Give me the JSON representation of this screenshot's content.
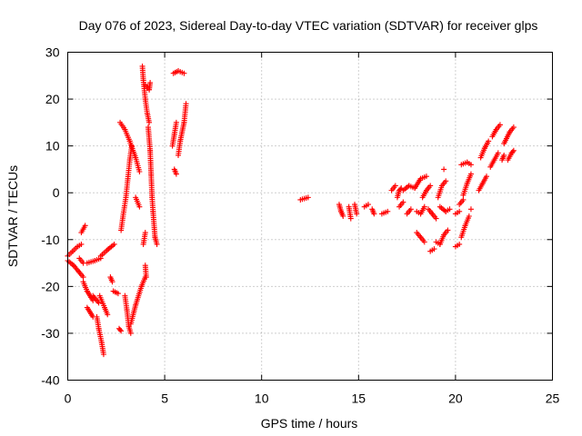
{
  "chart_data": {
    "type": "scatter",
    "title": "Day 076 of 2023, Sidereal Day-to-day VTEC variation (SDTVAR) for receiver glps",
    "xlabel": "GPS time / hours",
    "ylabel": "SDTVAR / TECUs",
    "xlim": [
      0,
      25
    ],
    "ylim": [
      -40,
      30
    ],
    "xticks": [
      0,
      5,
      10,
      15,
      20,
      25
    ],
    "yticks": [
      -40,
      -30,
      -20,
      -10,
      0,
      10,
      20,
      30
    ],
    "grid": true,
    "marker": "+",
    "color": "#ff0000",
    "series": [
      {
        "name": "SDTVAR",
        "segments": [
          [
            [
              0.0,
              -13.5
            ],
            [
              0.25,
              -12.5
            ],
            [
              0.5,
              -11.5
            ],
            [
              0.7,
              -11.0
            ]
          ],
          [
            [
              0.0,
              -14.5
            ],
            [
              0.3,
              -15.5
            ],
            [
              0.6,
              -17.0
            ],
            [
              0.8,
              -18.0
            ]
          ],
          [
            [
              0.7,
              -8.5
            ],
            [
              0.9,
              -7.0
            ]
          ],
          [
            [
              0.6,
              -14.0
            ],
            [
              0.8,
              -15.0
            ]
          ],
          [
            [
              0.8,
              -19.0
            ],
            [
              1.0,
              -21.0
            ],
            [
              1.3,
              -23.0
            ]
          ],
          [
            [
              1.0,
              -15.0
            ],
            [
              1.4,
              -14.5
            ],
            [
              1.7,
              -14.0
            ]
          ],
          [
            [
              1.0,
              -24.5
            ],
            [
              1.3,
              -26.5
            ]
          ],
          [
            [
              1.7,
              -13.5
            ],
            [
              2.1,
              -12.0
            ],
            [
              2.4,
              -11.0
            ]
          ],
          [
            [
              1.3,
              -22.0
            ],
            [
              1.6,
              -23.5
            ]
          ],
          [
            [
              1.5,
              -26.5
            ],
            [
              1.6,
              -29.0
            ],
            [
              1.75,
              -32.0
            ],
            [
              1.85,
              -34.5
            ]
          ],
          [
            [
              1.65,
              -22.0
            ],
            [
              1.9,
              -24.5
            ],
            [
              2.05,
              -26.0
            ]
          ],
          [
            [
              2.2,
              -18.0
            ],
            [
              2.3,
              -19.0
            ]
          ],
          [
            [
              2.35,
              -21.0
            ],
            [
              2.6,
              -21.5
            ]
          ],
          [
            [
              2.65,
              -29.0
            ],
            [
              2.75,
              -29.5
            ]
          ],
          [
            [
              2.75,
              -8.0
            ],
            [
              2.85,
              -5.0
            ],
            [
              3.0,
              -1.0
            ],
            [
              3.1,
              3.0
            ],
            [
              3.2,
              7.0
            ],
            [
              3.3,
              10.0
            ]
          ],
          [
            [
              2.7,
              15.0
            ],
            [
              2.95,
              13.5
            ],
            [
              3.2,
              11.0
            ],
            [
              3.5,
              7.5
            ],
            [
              3.7,
              4.5
            ]
          ],
          [
            [
              2.95,
              -22.0
            ],
            [
              3.05,
              -25.0
            ],
            [
              3.15,
              -28.5
            ],
            [
              3.25,
              -30.0
            ]
          ],
          [
            [
              3.25,
              -28.0
            ],
            [
              3.5,
              -24.0
            ],
            [
              3.8,
              -20.0
            ],
            [
              4.0,
              -18.0
            ]
          ],
          [
            [
              3.5,
              -1.0
            ],
            [
              3.7,
              -3.0
            ]
          ],
          [
            [
              3.85,
              27.0
            ],
            [
              3.9,
              24.0
            ],
            [
              4.0,
              20.0
            ],
            [
              4.1,
              17.0
            ],
            [
              4.2,
              15.0
            ]
          ],
          [
            [
              3.9,
              -11.0
            ],
            [
              4.0,
              -8.5
            ]
          ],
          [
            [
              4.0,
              -15.5
            ],
            [
              4.05,
              -18.0
            ]
          ],
          [
            [
              4.0,
              23.0
            ],
            [
              4.2,
              22.0
            ],
            [
              4.25,
              23.5
            ]
          ],
          [
            [
              4.15,
              14.0
            ],
            [
              4.25,
              9.0
            ],
            [
              4.3,
              4.0
            ],
            [
              4.35,
              -1.0
            ],
            [
              4.4,
              -4.0
            ],
            [
              4.5,
              -9.5
            ],
            [
              4.6,
              -11.0
            ]
          ],
          [
            [
              5.4,
              10.0
            ],
            [
              5.5,
              12.5
            ],
            [
              5.6,
              15.0
            ]
          ],
          [
            [
              5.45,
              25.5
            ],
            [
              5.7,
              26.0
            ],
            [
              6.0,
              25.5
            ]
          ],
          [
            [
              5.5,
              5.0
            ],
            [
              5.6,
              4.0
            ]
          ],
          [
            [
              5.7,
              8.0
            ],
            [
              5.8,
              11.0
            ],
            [
              6.0,
              15.0
            ],
            [
              6.1,
              19.0
            ]
          ],
          [
            [
              12.0,
              -1.5
            ],
            [
              12.4,
              -1.0
            ]
          ],
          [
            [
              14.0,
              -2.5
            ],
            [
              14.1,
              -4.0
            ],
            [
              14.2,
              -5.0
            ]
          ],
          [
            [
              14.5,
              -3.0
            ],
            [
              14.6,
              -5.5
            ]
          ],
          [
            [
              14.8,
              -2.5
            ],
            [
              14.9,
              -4.5
            ]
          ],
          [
            [
              15.3,
              -3.0
            ],
            [
              15.5,
              -2.5
            ]
          ],
          [
            [
              15.7,
              -3.5
            ],
            [
              15.8,
              -4.5
            ]
          ],
          [
            [
              16.2,
              -4.5
            ],
            [
              16.5,
              -4.0
            ]
          ],
          [
            [
              16.7,
              0.5
            ],
            [
              16.9,
              1.5
            ]
          ],
          [
            [
              17.0,
              -1.0
            ],
            [
              17.1,
              0.5
            ],
            [
              17.2,
              1.0
            ]
          ],
          [
            [
              17.1,
              -3.0
            ],
            [
              17.3,
              -2.0
            ]
          ],
          [
            [
              17.3,
              0.5
            ],
            [
              17.6,
              1.5
            ],
            [
              17.9,
              1.0
            ]
          ],
          [
            [
              17.5,
              -4.5
            ],
            [
              17.7,
              -3.5
            ]
          ],
          [
            [
              17.9,
              1.0
            ],
            [
              18.2,
              3.0
            ],
            [
              18.5,
              3.5
            ]
          ],
          [
            [
              18.0,
              -4.0
            ],
            [
              18.2,
              -4.5
            ],
            [
              18.4,
              -3.0
            ]
          ],
          [
            [
              18.0,
              -8.5
            ],
            [
              18.2,
              -9.5
            ],
            [
              18.4,
              -10.5
            ]
          ],
          [
            [
              18.3,
              -1.0
            ],
            [
              18.5,
              0.5
            ],
            [
              18.7,
              1.5
            ]
          ],
          [
            [
              18.6,
              -3.5
            ],
            [
              18.8,
              -4.5
            ],
            [
              19.0,
              -5.5
            ]
          ],
          [
            [
              18.7,
              -12.5
            ],
            [
              18.9,
              -12.0
            ]
          ],
          [
            [
              19.0,
              -10.5
            ],
            [
              19.2,
              -11.0
            ],
            [
              19.4,
              -9.0
            ],
            [
              19.6,
              -8.0
            ]
          ],
          [
            [
              19.1,
              -1.0
            ],
            [
              19.3,
              1.5
            ],
            [
              19.5,
              2.5
            ]
          ],
          [
            [
              19.2,
              -3.0
            ],
            [
              19.5,
              -4.0
            ],
            [
              19.7,
              -3.5
            ]
          ],
          [
            [
              19.4,
              5.0
            ]
          ],
          [
            [
              20.0,
              -4.5
            ],
            [
              20.2,
              -4.0
            ]
          ],
          [
            [
              20.0,
              -11.5
            ],
            [
              20.2,
              -11.0
            ]
          ],
          [
            [
              20.2,
              -2.5
            ],
            [
              20.4,
              -1.5
            ]
          ],
          [
            [
              20.3,
              6.0
            ],
            [
              20.6,
              6.5
            ],
            [
              20.8,
              6.0
            ]
          ],
          [
            [
              20.3,
              -9.5
            ],
            [
              20.5,
              -7.0
            ],
            [
              20.7,
              -5.0
            ]
          ],
          [
            [
              20.4,
              -0.5
            ],
            [
              20.6,
              2.0
            ],
            [
              20.8,
              4.0
            ]
          ],
          [
            [
              20.8,
              -3.5
            ]
          ],
          [
            [
              21.2,
              0.5
            ],
            [
              21.4,
              2.0
            ],
            [
              21.6,
              3.5
            ]
          ],
          [
            [
              21.3,
              7.5
            ],
            [
              21.5,
              9.5
            ],
            [
              21.7,
              11.0
            ]
          ],
          [
            [
              21.8,
              5.5
            ],
            [
              22.0,
              7.0
            ],
            [
              22.2,
              8.5
            ]
          ],
          [
            [
              21.9,
              12.0
            ],
            [
              22.1,
              13.5
            ],
            [
              22.3,
              14.5
            ]
          ],
          [
            [
              22.4,
              7.0
            ],
            [
              22.5,
              8.0
            ]
          ],
          [
            [
              22.5,
              10.5
            ],
            [
              22.8,
              13.0
            ],
            [
              23.0,
              14.0
            ]
          ],
          [
            [
              22.7,
              7.0
            ],
            [
              22.9,
              8.5
            ],
            [
              23.0,
              9.0
            ]
          ]
        ]
      }
    ]
  }
}
